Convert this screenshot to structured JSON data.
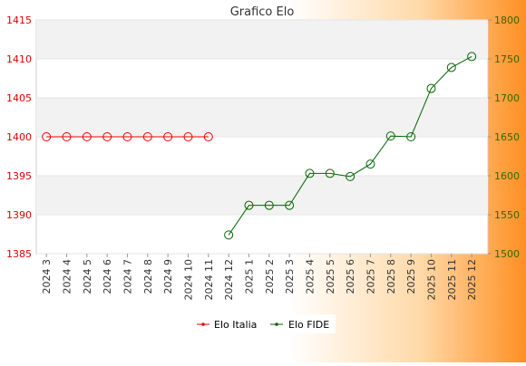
{
  "chart_data": {
    "type": "line",
    "title": "Grafico Elo",
    "categories": [
      "2024 3",
      "2024 4",
      "2024 5",
      "2024 6",
      "2024 7",
      "2024 8",
      "2024 9",
      "2024 10",
      "2024 11",
      "2024 12",
      "2025 1",
      "2025 2",
      "2025 3",
      "2025 4",
      "2025 5",
      "2025 6",
      "2025 7",
      "2025 8",
      "2025 9",
      "2025 10",
      "2025 11",
      "2025 12"
    ],
    "y_left": {
      "min": 1385,
      "max": 1415,
      "ticks": [
        1385,
        1390,
        1395,
        1400,
        1405,
        1410,
        1415
      ]
    },
    "y_right": {
      "min": 1500,
      "max": 1800,
      "ticks": [
        1500,
        1550,
        1600,
        1650,
        1700,
        1750,
        1800
      ]
    },
    "series": [
      {
        "name": "Elo Italia",
        "axis": "left",
        "color": "#ee0000",
        "values": [
          1400,
          1400,
          1400,
          1400,
          1400,
          1400,
          1400,
          1400,
          1400,
          null,
          null,
          null,
          null,
          null,
          null,
          null,
          null,
          null,
          null,
          null,
          null,
          null
        ]
      },
      {
        "name": "Elo FIDE",
        "axis": "right",
        "color": "#006600",
        "values": [
          null,
          null,
          null,
          null,
          null,
          null,
          null,
          null,
          null,
          1524,
          1562,
          1562,
          1562,
          1603,
          1603,
          1599,
          1615,
          1651,
          1650,
          1712,
          1739,
          1753
        ]
      }
    ],
    "left_axis_color": "#dd0000",
    "right_axis_color": "#336600",
    "grid": true,
    "legend_position": "bottom"
  }
}
